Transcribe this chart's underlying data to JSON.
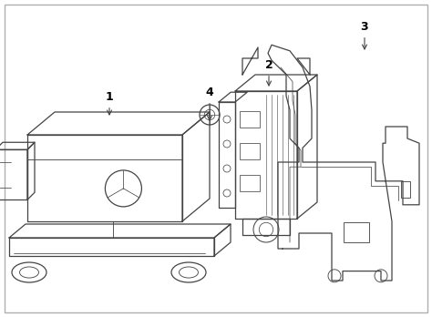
{
  "background_color": "#ffffff",
  "border_color": "#b0b0b0",
  "line_color": "#444444",
  "label_color": "#000000",
  "fig_width": 4.74,
  "fig_height": 3.48,
  "dpi": 100
}
